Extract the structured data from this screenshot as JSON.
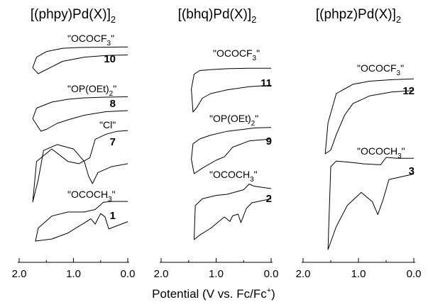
{
  "xlabel": "Potential (V vs. Fc/Fc",
  "xlabel_sup": "+",
  "xlabel_end": ")",
  "colors": {
    "trace": "#000000",
    "axis": "#000000",
    "background": "#ffffff"
  },
  "chart_data": [
    {
      "type": "line",
      "title_main": "[(phpy)Pd(X)]",
      "title_sub": "2",
      "xlim": [
        2.0,
        0.0
      ],
      "xticks": [
        "2.0",
        "1.0",
        "0.0"
      ],
      "grid": false,
      "series": [
        {
          "label_main": "\"OCOCF",
          "label_sub": "3",
          "label_end": "\"",
          "compound": "10",
          "x": [
            0.0,
            0.4,
            0.8,
            1.2,
            1.45,
            1.6,
            1.65,
            1.75,
            1.68,
            1.5,
            1.2,
            0.9,
            0.5,
            0.1,
            0.0
          ],
          "y": [
            0.68,
            0.66,
            0.6,
            0.45,
            0.2,
            0.05,
            0.0,
            0.22,
            0.6,
            0.8,
            0.92,
            0.95,
            0.96,
            0.97,
            0.97
          ]
        },
        {
          "label_main": "\"OP(OEt)",
          "label_sub": "2",
          "label_end": "\"",
          "compound": "8",
          "x": [
            0.0,
            0.4,
            0.8,
            1.1,
            1.3,
            1.5,
            1.6,
            1.75,
            1.68,
            1.4,
            1.1,
            0.8,
            0.4,
            0.0
          ],
          "y": [
            0.58,
            0.55,
            0.45,
            0.32,
            0.22,
            0.05,
            0.0,
            0.35,
            0.65,
            0.82,
            0.9,
            0.94,
            0.96,
            0.97
          ]
        },
        {
          "label_main": "\"Cl\"",
          "label_sub": "",
          "label_end": "",
          "compound": "7",
          "x": [
            0.0,
            0.3,
            0.55,
            0.65,
            0.72,
            0.8,
            1.0,
            1.3,
            1.55,
            1.65,
            1.75,
            1.68,
            1.4,
            1.1,
            0.9,
            0.7,
            0.6,
            0.4,
            0.2,
            0.0
          ],
          "y": [
            0.52,
            0.48,
            0.4,
            0.25,
            0.35,
            0.55,
            0.72,
            0.78,
            0.7,
            0.3,
            0.0,
            0.55,
            0.72,
            0.55,
            0.52,
            0.6,
            0.85,
            0.92,
            0.96,
            0.97
          ]
        },
        {
          "label_main": "\"OCOCH",
          "label_sub": "3",
          "label_end": "\"",
          "compound": "1",
          "x": [
            0.0,
            0.35,
            0.42,
            0.5,
            0.55,
            0.6,
            0.68,
            0.8,
            1.1,
            1.4,
            1.7,
            1.65,
            1.4,
            1.1,
            0.8,
            0.6,
            0.5,
            0.45,
            0.3,
            0.0
          ],
          "y": [
            0.48,
            0.3,
            0.6,
            0.68,
            0.55,
            0.42,
            0.55,
            0.45,
            0.2,
            0.05,
            0.0,
            0.32,
            0.62,
            0.72,
            0.72,
            0.78,
            0.9,
            0.96,
            0.98,
            0.98
          ]
        }
      ]
    },
    {
      "type": "line",
      "title_main": "[(bhq)Pd(X)]",
      "title_sub": "2",
      "xlim": [
        2.0,
        0.0
      ],
      "xticks": [
        "2.0",
        "1.0",
        "0.0"
      ],
      "grid": false,
      "series": [
        {
          "label_main": "\"OCOCF",
          "label_sub": "3",
          "label_end": "\"",
          "compound": "11",
          "x": [
            0.0,
            0.4,
            0.8,
            1.1,
            1.25,
            1.35,
            1.42,
            1.45,
            1.4,
            1.3,
            1.1,
            0.8,
            0.4,
            0.0
          ],
          "y": [
            0.58,
            0.55,
            0.48,
            0.4,
            0.3,
            0.1,
            0.0,
            0.5,
            0.82,
            0.9,
            0.92,
            0.94,
            0.95,
            0.95
          ]
        },
        {
          "label_main": "\"OP(OEt)",
          "label_sub": "2",
          "label_end": "\"",
          "compound": "9",
          "x": [
            0.0,
            0.4,
            0.7,
            0.85,
            1.0,
            1.2,
            1.3,
            1.4,
            1.45,
            1.42,
            1.3,
            1.1,
            0.8,
            0.5,
            0.3,
            0.0
          ],
          "y": [
            0.72,
            0.68,
            0.55,
            0.35,
            0.28,
            0.15,
            0.08,
            0.0,
            0.3,
            0.62,
            0.72,
            0.8,
            0.88,
            0.92,
            0.95,
            0.96
          ]
        },
        {
          "label_main": "\"OCOCH",
          "label_sub": "3",
          "label_end": "\"",
          "compound": "2",
          "x": [
            0.0,
            0.35,
            0.45,
            0.55,
            0.6,
            0.7,
            0.75,
            0.85,
            1.1,
            1.3,
            1.4,
            1.38,
            1.25,
            1.0,
            0.8,
            0.5,
            0.4,
            0.3,
            0.0
          ],
          "y": [
            0.72,
            0.65,
            0.55,
            0.3,
            0.45,
            0.42,
            0.32,
            0.4,
            0.2,
            0.08,
            0.0,
            0.6,
            0.72,
            0.78,
            0.8,
            0.88,
            0.98,
            0.94,
            0.9
          ]
        }
      ]
    },
    {
      "type": "line",
      "title_main": "[(phpz)Pd(X)]",
      "title_sub": "2",
      "xlim": [
        2.0,
        0.0
      ],
      "xticks": [
        "2.0",
        "1.0",
        "0.0"
      ],
      "grid": false,
      "series": [
        {
          "label_main": "\"OCOCF",
          "label_sub": "3",
          "label_end": "\"",
          "compound": "12",
          "x": [
            0.0,
            0.4,
            0.8,
            1.1,
            1.25,
            1.4,
            1.5,
            1.6,
            1.55,
            1.4,
            1.1,
            0.8,
            0.4,
            0.0
          ],
          "y": [
            0.82,
            0.8,
            0.75,
            0.65,
            0.5,
            0.25,
            0.05,
            0.0,
            0.4,
            0.78,
            0.9,
            0.94,
            0.96,
            0.97
          ]
        },
        {
          "label_main": "\"OCOCH",
          "label_sub": "3",
          "label_end": "\"",
          "compound": "3",
          "x": [
            0.0,
            0.45,
            0.55,
            0.65,
            0.75,
            0.95,
            1.2,
            1.4,
            1.55,
            1.5,
            1.4,
            1.2,
            0.9,
            0.6,
            0.5,
            0.3,
            0.0
          ],
          "y": [
            0.82,
            0.76,
            0.55,
            0.38,
            0.52,
            0.62,
            0.48,
            0.25,
            0.0,
            0.9,
            0.96,
            0.95,
            0.93,
            0.92,
            1.0,
            0.99,
            0.99
          ]
        }
      ]
    }
  ]
}
